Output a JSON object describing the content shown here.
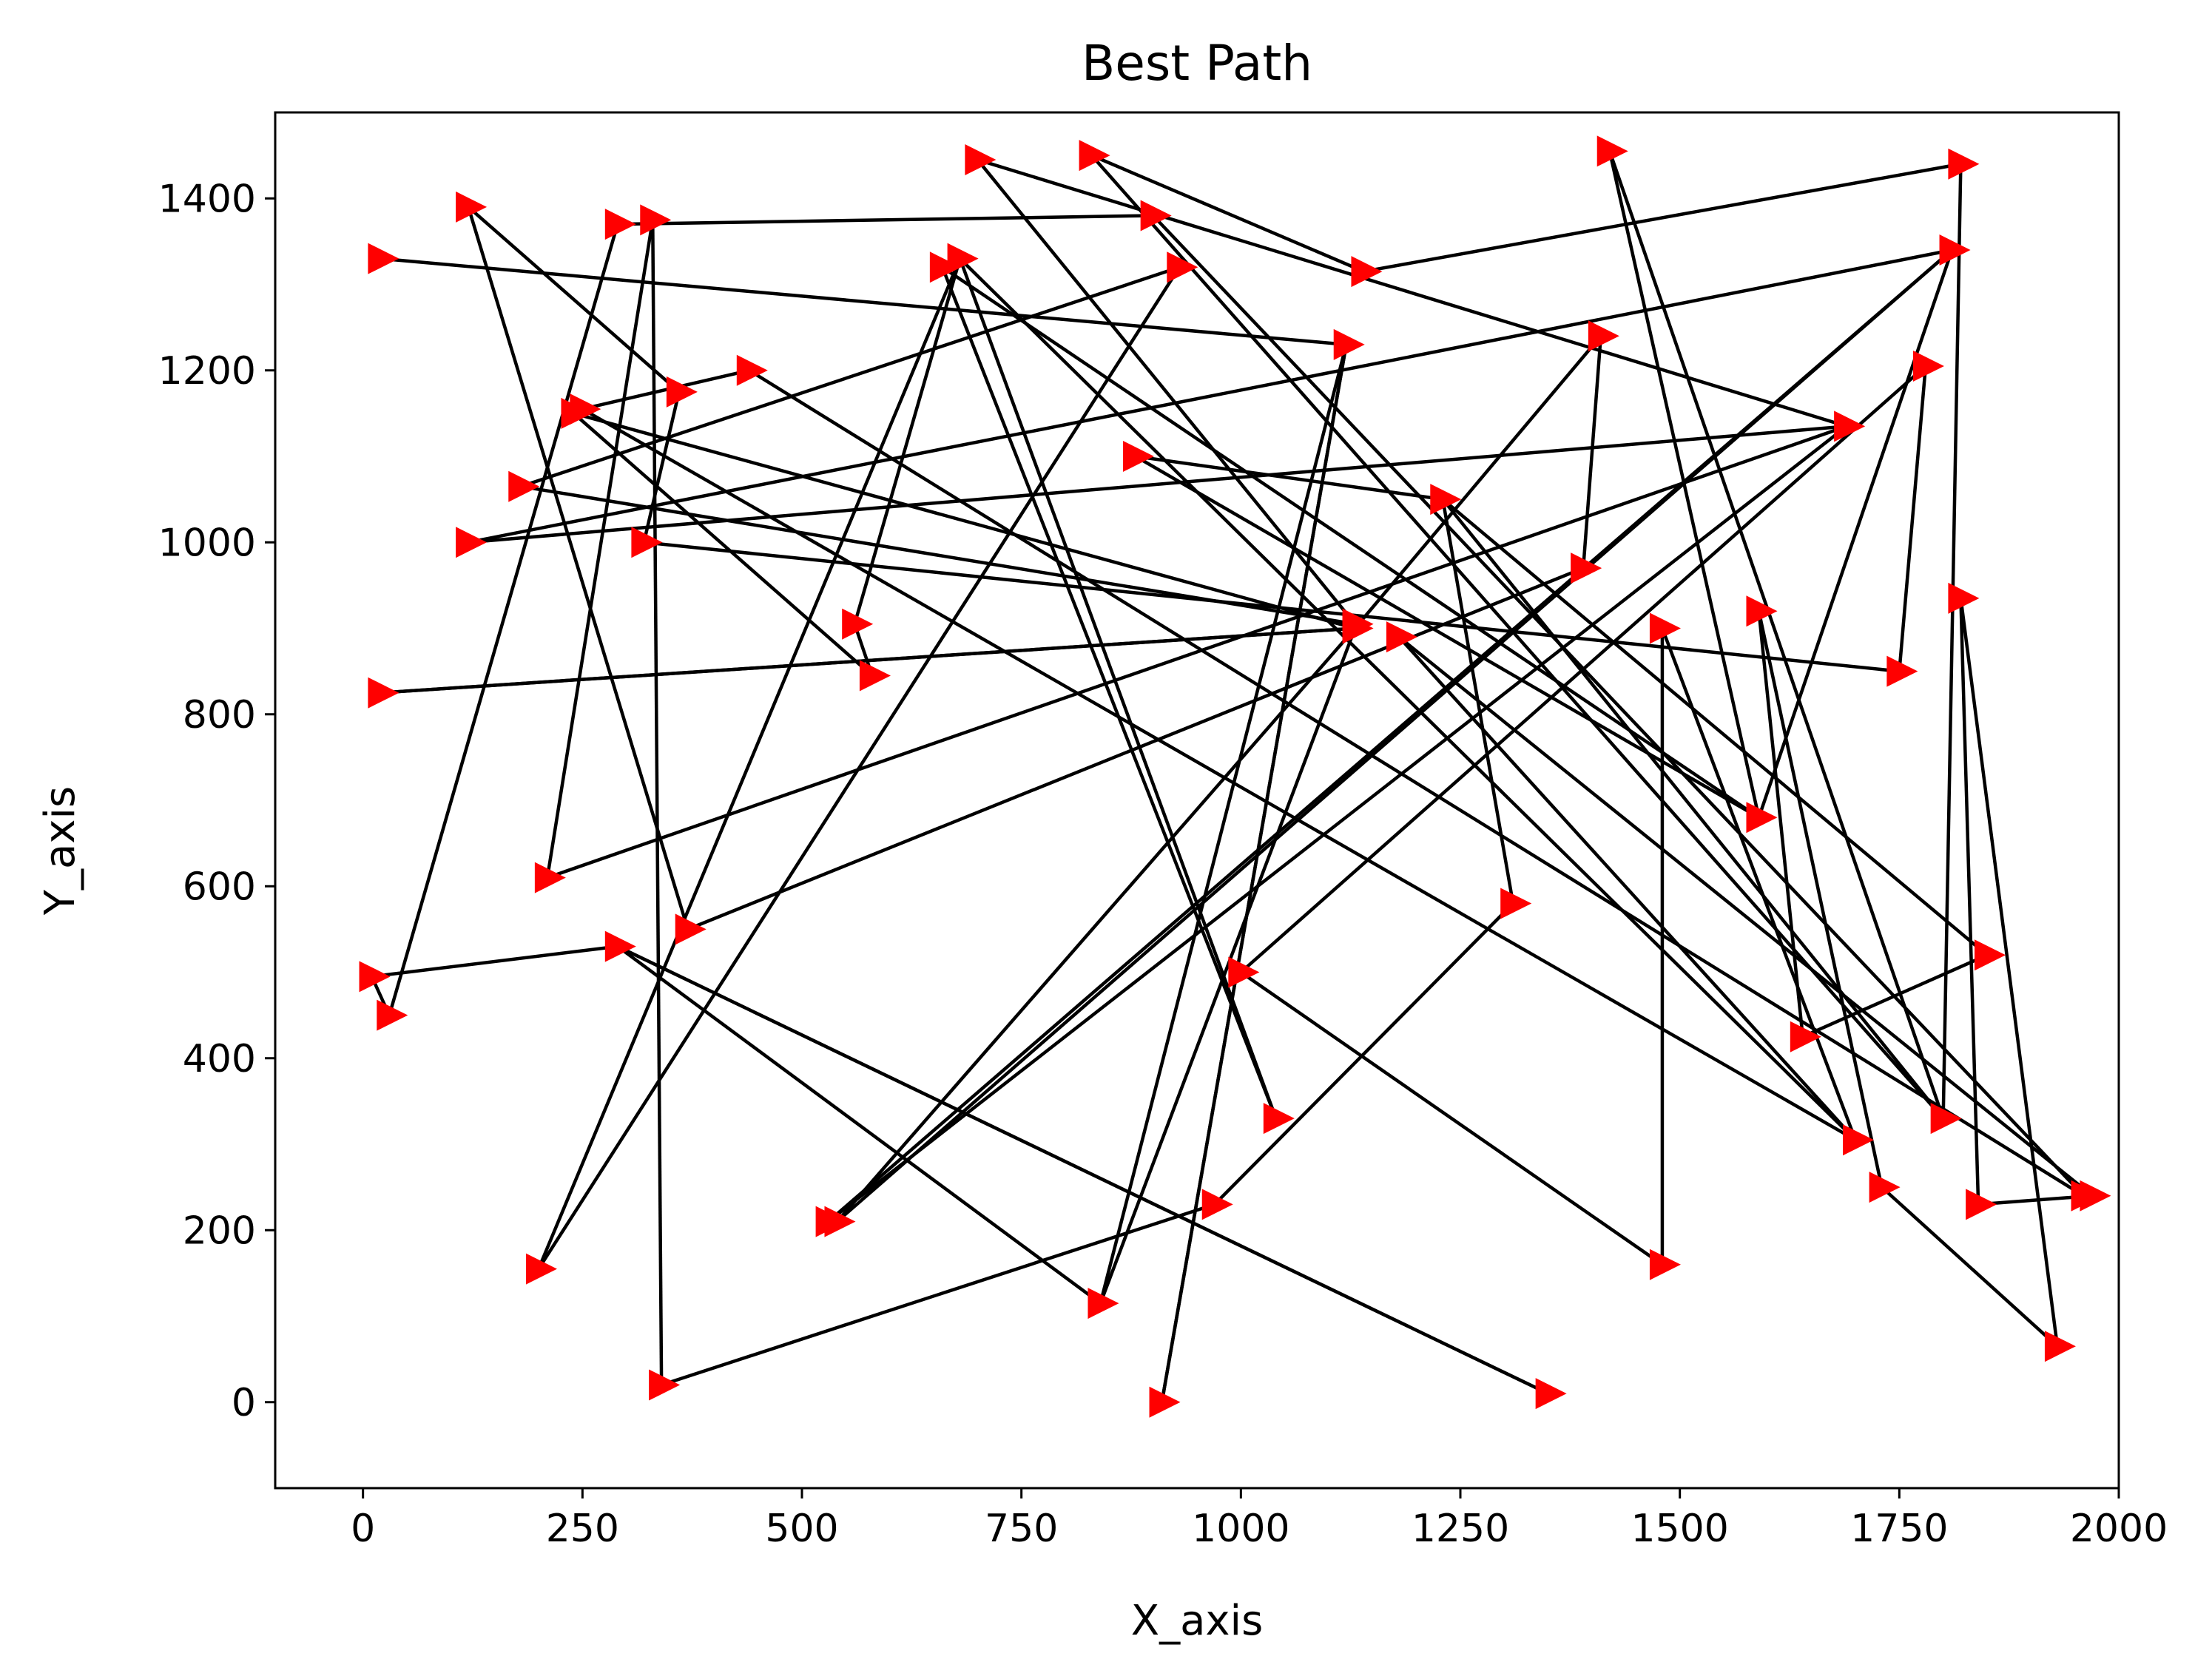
{
  "chart_data": {
    "type": "line",
    "title": "Best Path",
    "xlabel": "X_axis",
    "ylabel": "Y_axis",
    "xlim": [
      -100,
      2000
    ],
    "ylim": [
      -100,
      1500
    ],
    "x_ticks": [
      0,
      250,
      500,
      750,
      1000,
      1250,
      1500,
      1750,
      2000
    ],
    "y_ticks": [
      0,
      200,
      400,
      600,
      800,
      1000,
      1200,
      1400
    ],
    "grid": false,
    "legend": "none",
    "marker": "triangle-right",
    "marker_color": "#ff0000",
    "line_color": "#000000",
    "path": [
      {
        "x": 20,
        "y": 1330
      },
      {
        "x": 1120,
        "y": 1230
      },
      {
        "x": 910,
        "y": 0
      },
      {
        "x": 1120,
        "y": 1230
      },
      {
        "x": 840,
        "y": 115
      },
      {
        "x": 1130,
        "y": 900
      },
      {
        "x": 1410,
        "y": 1240
      },
      {
        "x": 1390,
        "y": 970
      },
      {
        "x": 370,
        "y": 550
      },
      {
        "x": 120,
        "y": 1390
      },
      {
        "x": 360,
        "y": 1175
      },
      {
        "x": 320,
        "y": 1000
      },
      {
        "x": 1750,
        "y": 850
      },
      {
        "x": 1780,
        "y": 1205
      },
      {
        "x": 1000,
        "y": 500
      },
      {
        "x": 1480,
        "y": 160
      },
      {
        "x": 1480,
        "y": 900
      },
      {
        "x": 1700,
        "y": 305
      },
      {
        "x": 1180,
        "y": 890
      },
      {
        "x": 1970,
        "y": 240
      },
      {
        "x": 1840,
        "y": 230
      },
      {
        "x": 1820,
        "y": 935
      },
      {
        "x": 1930,
        "y": 65
      },
      {
        "x": 1730,
        "y": 250
      },
      {
        "x": 1590,
        "y": 920
      },
      {
        "x": 1640,
        "y": 425
      },
      {
        "x": 1850,
        "y": 520
      },
      {
        "x": 1230,
        "y": 1050
      },
      {
        "x": 1310,
        "y": 580
      },
      {
        "x": 970,
        "y": 230
      },
      {
        "x": 340,
        "y": 20
      },
      {
        "x": 330,
        "y": 1375
      },
      {
        "x": 210,
        "y": 610
      },
      {
        "x": 1690,
        "y": 1135
      },
      {
        "x": 700,
        "y": 1445
      },
      {
        "x": 1130,
        "y": 905
      },
      {
        "x": 180,
        "y": 1065
      },
      {
        "x": 930,
        "y": 1320
      },
      {
        "x": 200,
        "y": 155
      },
      {
        "x": 680,
        "y": 1330
      },
      {
        "x": 1040,
        "y": 330
      },
      {
        "x": 660,
        "y": 1320
      },
      {
        "x": 1590,
        "y": 680
      },
      {
        "x": 1420,
        "y": 1455
      },
      {
        "x": 1800,
        "y": 330
      },
      {
        "x": 1820,
        "y": 1440
      },
      {
        "x": 1140,
        "y": 1315
      },
      {
        "x": 830,
        "y": 1450
      },
      {
        "x": 1800,
        "y": 330
      },
      {
        "x": 1230,
        "y": 1050
      },
      {
        "x": 880,
        "y": 1100
      },
      {
        "x": 1590,
        "y": 680
      },
      {
        "x": 1810,
        "y": 1340
      },
      {
        "x": 530,
        "y": 210
      },
      {
        "x": 1690,
        "y": 1135
      },
      {
        "x": 120,
        "y": 1000
      },
      {
        "x": 1810,
        "y": 1340
      },
      {
        "x": 540,
        "y": 210
      },
      {
        "x": 1130,
        "y": 900
      },
      {
        "x": 20,
        "y": 825
      },
      {
        "x": 1130,
        "y": 900
      },
      {
        "x": 240,
        "y": 1150
      },
      {
        "x": 580,
        "y": 845
      },
      {
        "x": 560,
        "y": 905
      },
      {
        "x": 680,
        "y": 1330
      },
      {
        "x": 1700,
        "y": 305
      },
      {
        "x": 250,
        "y": 1155
      },
      {
        "x": 440,
        "y": 1200
      },
      {
        "x": 1960,
        "y": 240
      },
      {
        "x": 900,
        "y": 1380
      },
      {
        "x": 290,
        "y": 1370
      },
      {
        "x": 30,
        "y": 450
      },
      {
        "x": 10,
        "y": 495
      },
      {
        "x": 290,
        "y": 530
      },
      {
        "x": 1350,
        "y": 10
      },
      {
        "x": 290,
        "y": 530
      },
      {
        "x": 840,
        "y": 115
      }
    ]
  }
}
